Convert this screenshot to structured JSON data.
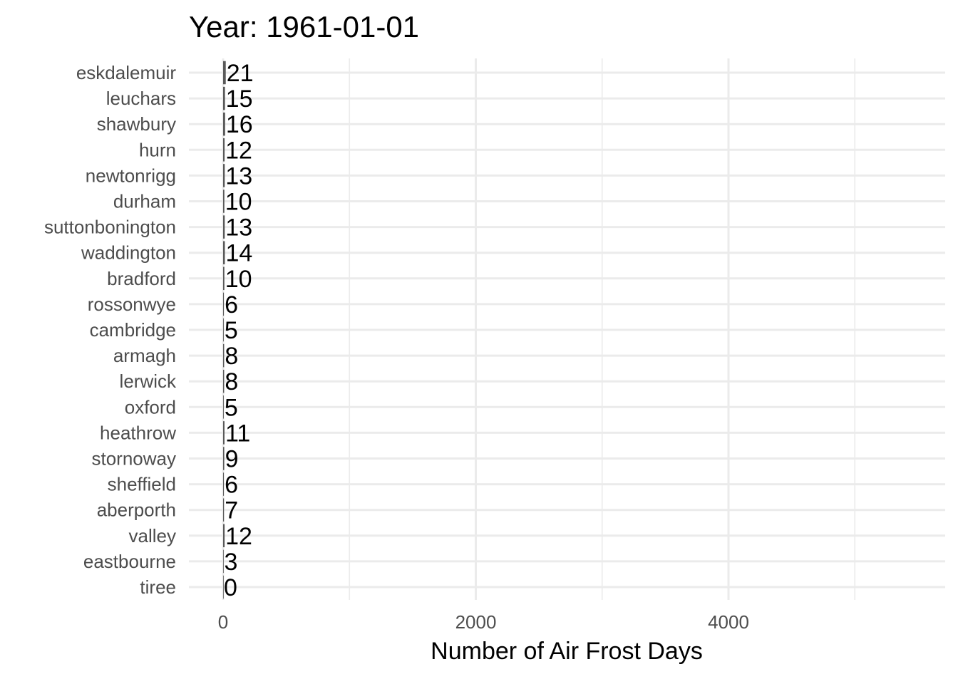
{
  "chart_data": {
    "type": "bar",
    "orientation": "horizontal",
    "title": "Year: 1961-01-01",
    "xlabel": "Number of Air Frost Days",
    "ylabel": "",
    "xlim": [
      0,
      5700
    ],
    "x_ticks": [
      0,
      2000,
      4000
    ],
    "x_minor_ticks": [
      1000,
      3000,
      5000
    ],
    "grid": true,
    "legend": "none",
    "bar_color": "#595959",
    "grid_color": "#ebebeb",
    "categories": [
      "eskdalemuir",
      "leuchars",
      "shawbury",
      "hurn",
      "newtonrigg",
      "durham",
      "suttonbonington",
      "waddington",
      "bradford",
      "rossonwye",
      "cambridge",
      "armagh",
      "lerwick",
      "oxford",
      "heathrow",
      "stornoway",
      "sheffield",
      "aberporth",
      "valley",
      "eastbourne",
      "tiree"
    ],
    "values": [
      21,
      15,
      16,
      12,
      13,
      10,
      13,
      14,
      10,
      6,
      5,
      8,
      8,
      5,
      11,
      9,
      6,
      7,
      12,
      3,
      0
    ]
  }
}
